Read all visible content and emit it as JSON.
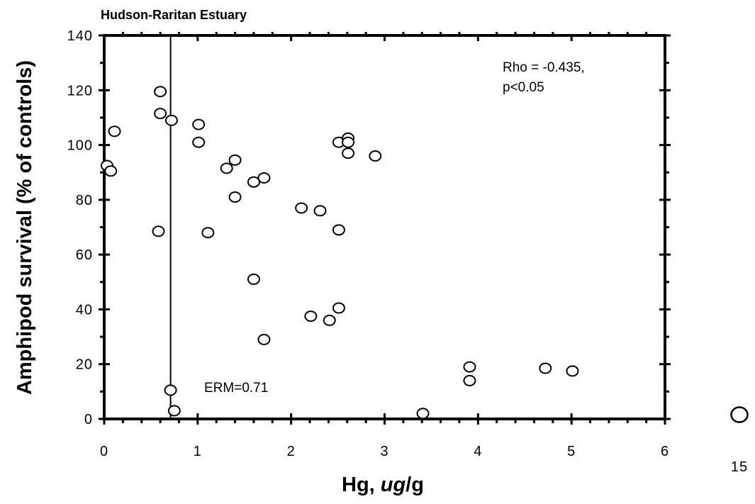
{
  "chart_data": {
    "type": "scatter",
    "title": "Hudson-Raritan Estuary",
    "xlabel": "Hg, ug/g",
    "ylabel": "Amphipod survival (% of controls)",
    "xlim": [
      0,
      6
    ],
    "ylim": [
      0,
      140
    ],
    "x_ticks": [
      0,
      1,
      2,
      3,
      4,
      5,
      6
    ],
    "y_ticks": [
      0,
      20,
      40,
      60,
      80,
      100,
      120,
      140
    ],
    "x_tick_labels": [
      "0",
      "1",
      "2",
      "3",
      "4",
      "5",
      "6"
    ],
    "y_tick_labels": [
      "0",
      "20",
      "40",
      "60",
      "80",
      "100",
      "120",
      "140"
    ],
    "grid": false,
    "reference_line": {
      "x": 0.71,
      "label": "ERM=0.71"
    },
    "annotation": [
      "Rho = -0.435,",
      "p<0.05"
    ],
    "points": [
      {
        "x": 0.03,
        "y": 92.5
      },
      {
        "x": 0.07,
        "y": 90.5
      },
      {
        "x": 0.11,
        "y": 105
      },
      {
        "x": 0.6,
        "y": 119.5
      },
      {
        "x": 0.6,
        "y": 111.5
      },
      {
        "x": 0.72,
        "y": 109
      },
      {
        "x": 0.58,
        "y": 68.5
      },
      {
        "x": 0.71,
        "y": 10.5
      },
      {
        "x": 0.75,
        "y": 3
      },
      {
        "x": 1.01,
        "y": 107.5
      },
      {
        "x": 1.01,
        "y": 101
      },
      {
        "x": 1.11,
        "y": 68
      },
      {
        "x": 1.31,
        "y": 91.5
      },
      {
        "x": 1.4,
        "y": 94.5
      },
      {
        "x": 1.4,
        "y": 81
      },
      {
        "x": 1.6,
        "y": 86.5
      },
      {
        "x": 1.71,
        "y": 88
      },
      {
        "x": 1.6,
        "y": 51
      },
      {
        "x": 1.71,
        "y": 29
      },
      {
        "x": 2.11,
        "y": 77
      },
      {
        "x": 2.31,
        "y": 76
      },
      {
        "x": 2.21,
        "y": 37.5
      },
      {
        "x": 2.41,
        "y": 36
      },
      {
        "x": 2.51,
        "y": 40.5
      },
      {
        "x": 2.51,
        "y": 69
      },
      {
        "x": 2.51,
        "y": 101
      },
      {
        "x": 2.61,
        "y": 102.5
      },
      {
        "x": 2.61,
        "y": 101
      },
      {
        "x": 2.61,
        "y": 97
      },
      {
        "x": 2.9,
        "y": 96
      },
      {
        "x": 3.41,
        "y": 2
      },
      {
        "x": 3.91,
        "y": 19
      },
      {
        "x": 3.91,
        "y": 14
      },
      {
        "x": 4.72,
        "y": 18.5
      },
      {
        "x": 5.01,
        "y": 17.5
      }
    ],
    "outlier_point": {
      "x": 15,
      "y": 1.5,
      "label": "15"
    }
  }
}
